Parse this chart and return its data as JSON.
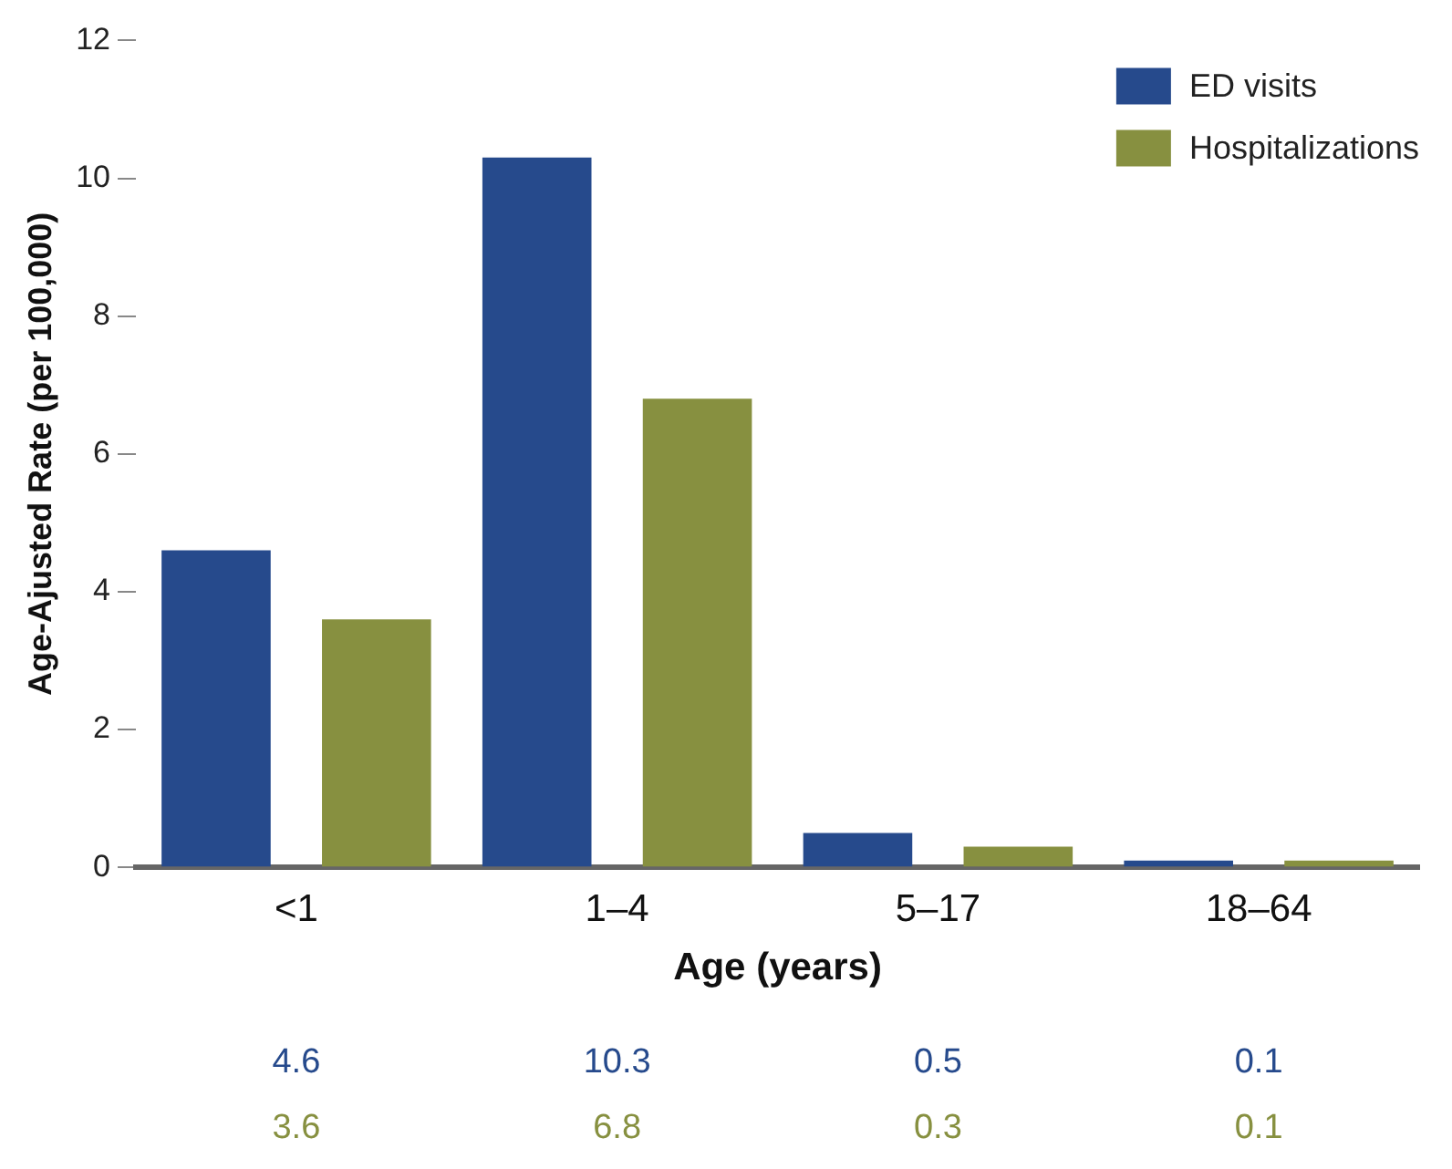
{
  "chart_data": {
    "type": "bar",
    "xlabel": "Age (years)",
    "ylabel": "Age-Ajusted Rate (per 100,000)",
    "categories": [
      "<1",
      "1–4",
      "5–17",
      "18–64"
    ],
    "series": [
      {
        "name": "ED visits",
        "color": "#264a8c",
        "values": [
          4.6,
          10.3,
          0.5,
          0.1
        ]
      },
      {
        "name": "Hospitalizations",
        "color": "#879040",
        "values": [
          3.6,
          6.8,
          0.3,
          0.1
        ]
      }
    ],
    "ylim": [
      0,
      12
    ],
    "yticks": [
      0,
      2,
      4,
      6,
      8,
      10,
      12
    ],
    "grid": false,
    "legend": "top right",
    "data_labels": true
  }
}
